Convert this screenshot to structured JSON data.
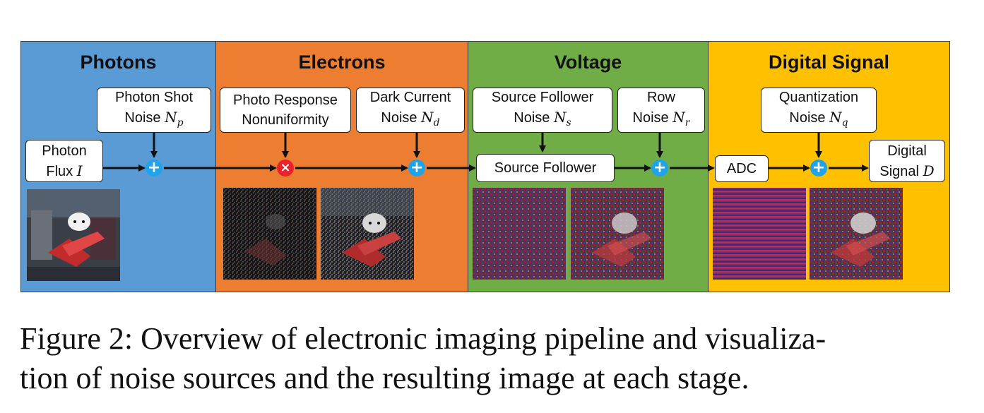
{
  "stages": {
    "photons": "Photons",
    "electrons": "Electrons",
    "voltage": "Voltage",
    "digital": "Digital Signal"
  },
  "colors": {
    "photons": "#5b9bd5",
    "electrons": "#ed7d31",
    "voltage": "#70ad47",
    "digital": "#ffc000",
    "plus_node": "#1fa4ea",
    "times_node": "#e8232b"
  },
  "nodes": {
    "photon_shot_l1": "Photon Shot",
    "photon_shot_l2": "Noise",
    "photon_shot_var": "N",
    "photon_shot_sub": "p",
    "photon_flux_l1": "Photon",
    "photon_flux_l2": "Flux",
    "photon_flux_var": "I",
    "prnu_l1": "Photo Response",
    "prnu_l2": "Nonuniformity",
    "dark_l1": "Dark Current",
    "dark_l2": "Noise",
    "dark_var": "N",
    "dark_sub": "d",
    "sf_noise_l1": "Source Follower",
    "sf_noise_l2": "Noise",
    "sf_noise_var": "N",
    "sf_noise_sub": "s",
    "row_l1": "Row",
    "row_l2": "Noise",
    "row_var": "N",
    "row_sub": "r",
    "source_follower": "Source Follower",
    "quant_l1": "Quantization",
    "quant_l2": "Noise",
    "quant_var": "N",
    "quant_sub": "q",
    "adc": "ADC",
    "digital_l1": "Digital",
    "digital_l2": "Signal",
    "digital_var": "D"
  },
  "ops": {
    "plus": "+",
    "times": "×"
  },
  "caption": {
    "line1": "Figure 2: Overview of electronic imaging pipeline and visualiza-",
    "line2": "tion of noise sources and the resulting image at each stage."
  }
}
